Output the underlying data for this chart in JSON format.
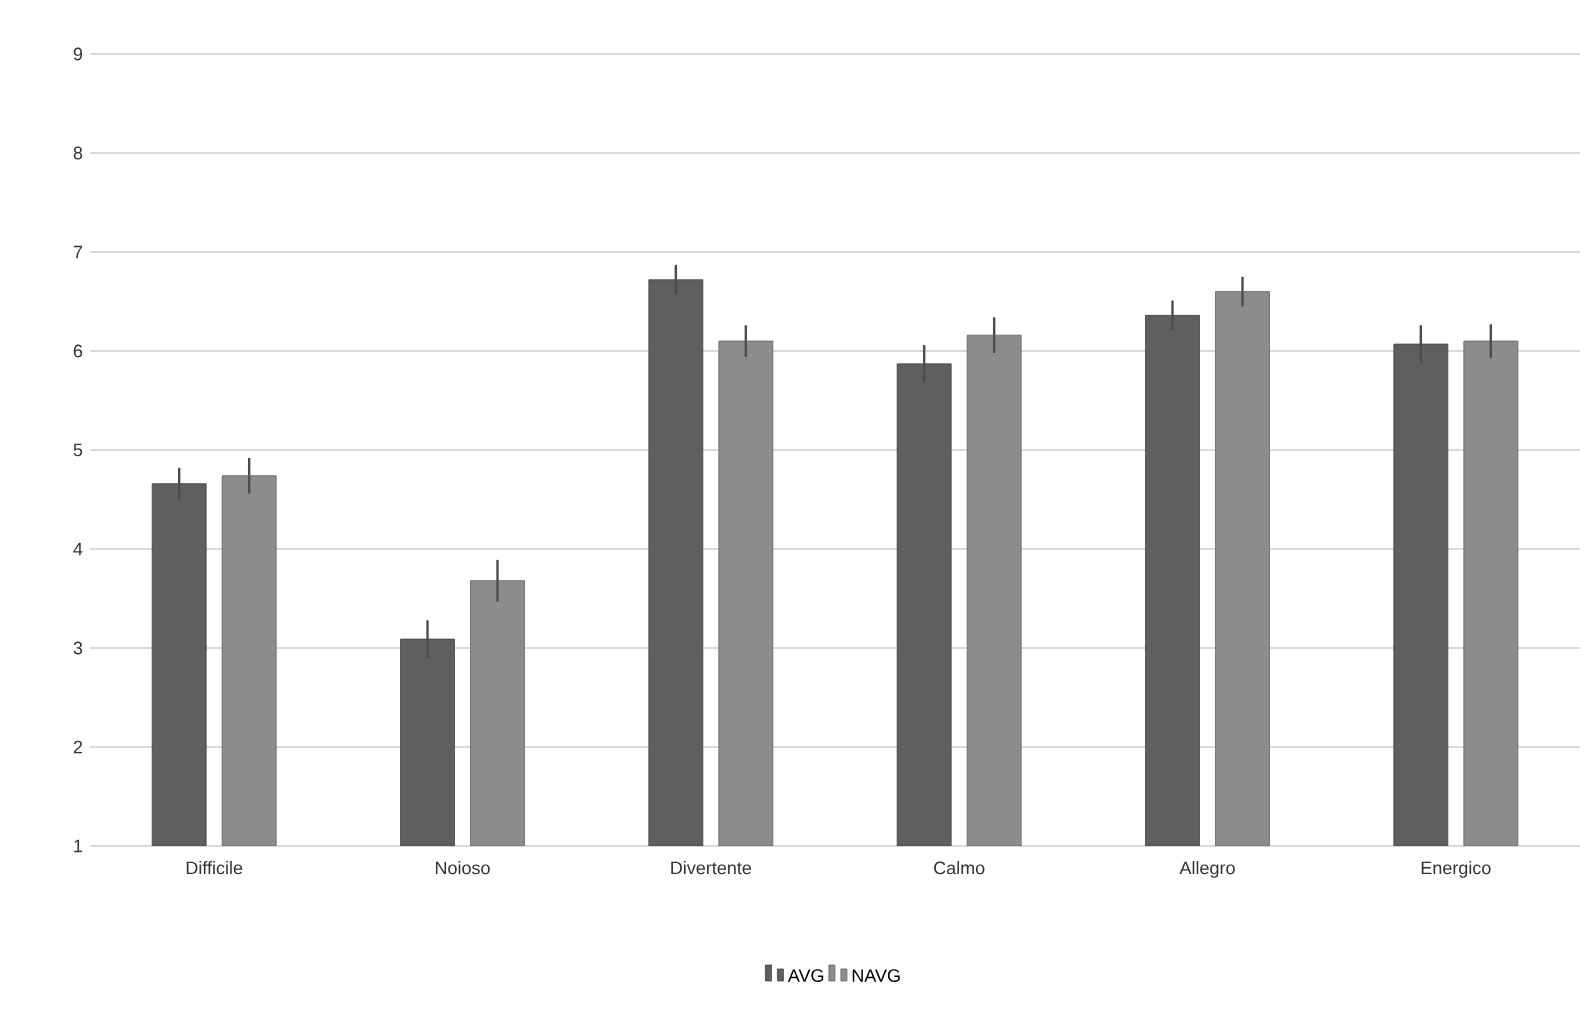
{
  "chart_data": {
    "type": "bar",
    "categories": [
      "Difficile",
      "Noioso",
      "Divertente",
      "Calmo",
      "Allegro",
      "Energico"
    ],
    "series": [
      {
        "name": "AVG",
        "color": "#5f5f5f",
        "values": [
          4.66,
          3.09,
          6.72,
          5.87,
          6.36,
          6.07
        ],
        "errors": [
          0.16,
          0.19,
          0.15,
          0.19,
          0.15,
          0.19
        ]
      },
      {
        "name": "NAVG",
        "color": "#8c8c8c",
        "values": [
          4.74,
          3.68,
          6.1,
          6.16,
          6.6,
          6.1
        ],
        "errors": [
          0.18,
          0.21,
          0.16,
          0.18,
          0.15,
          0.17
        ]
      }
    ],
    "ylim": [
      1,
      9
    ],
    "yticks": [
      1,
      2,
      3,
      4,
      5,
      6,
      7,
      8,
      9
    ],
    "grid": "y",
    "legend": "bottom"
  }
}
